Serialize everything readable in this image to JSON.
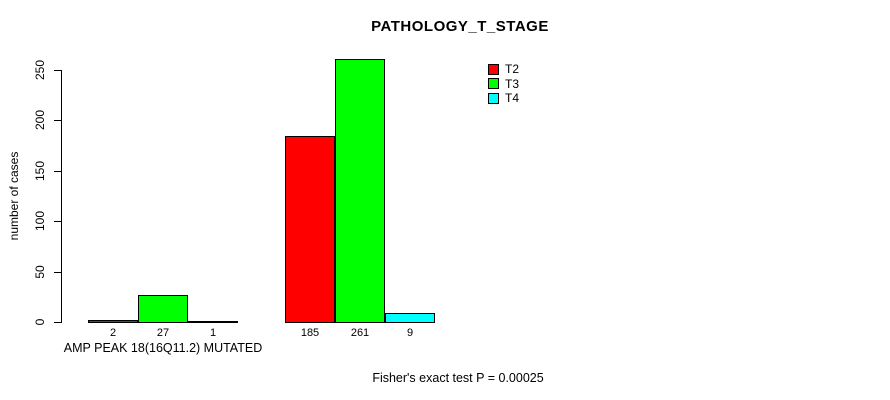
{
  "chart_data": {
    "type": "bar",
    "title": "PATHOLOGY_T_STAGE",
    "ylabel": "number of cases",
    "xlabel": "AMP PEAK 18(16Q11.2) MUTATED",
    "annotation": "Fisher's exact test P = 0.00025",
    "yticks": [
      0,
      50,
      100,
      150,
      200,
      250
    ],
    "ylim": [
      0,
      250
    ],
    "grid": false,
    "legend_position": "top-right",
    "groups": [
      "AMP PEAK 18(16Q11.2) MUTATED",
      ""
    ],
    "series": [
      {
        "name": "T2",
        "color": "#ff0000",
        "values": [
          2,
          185
        ]
      },
      {
        "name": "T3",
        "color": "#00ff00",
        "values": [
          27,
          261
        ]
      },
      {
        "name": "T4",
        "color": "#00ffff",
        "values": [
          1,
          9
        ]
      }
    ],
    "bar_value_labels": [
      [
        2,
        27,
        1
      ],
      [
        185,
        261,
        9
      ]
    ]
  },
  "colors": {
    "axis": "#000000",
    "background": "#ffffff",
    "t2": "#ff0000",
    "t3": "#00ff00",
    "t4": "#00ffff"
  }
}
